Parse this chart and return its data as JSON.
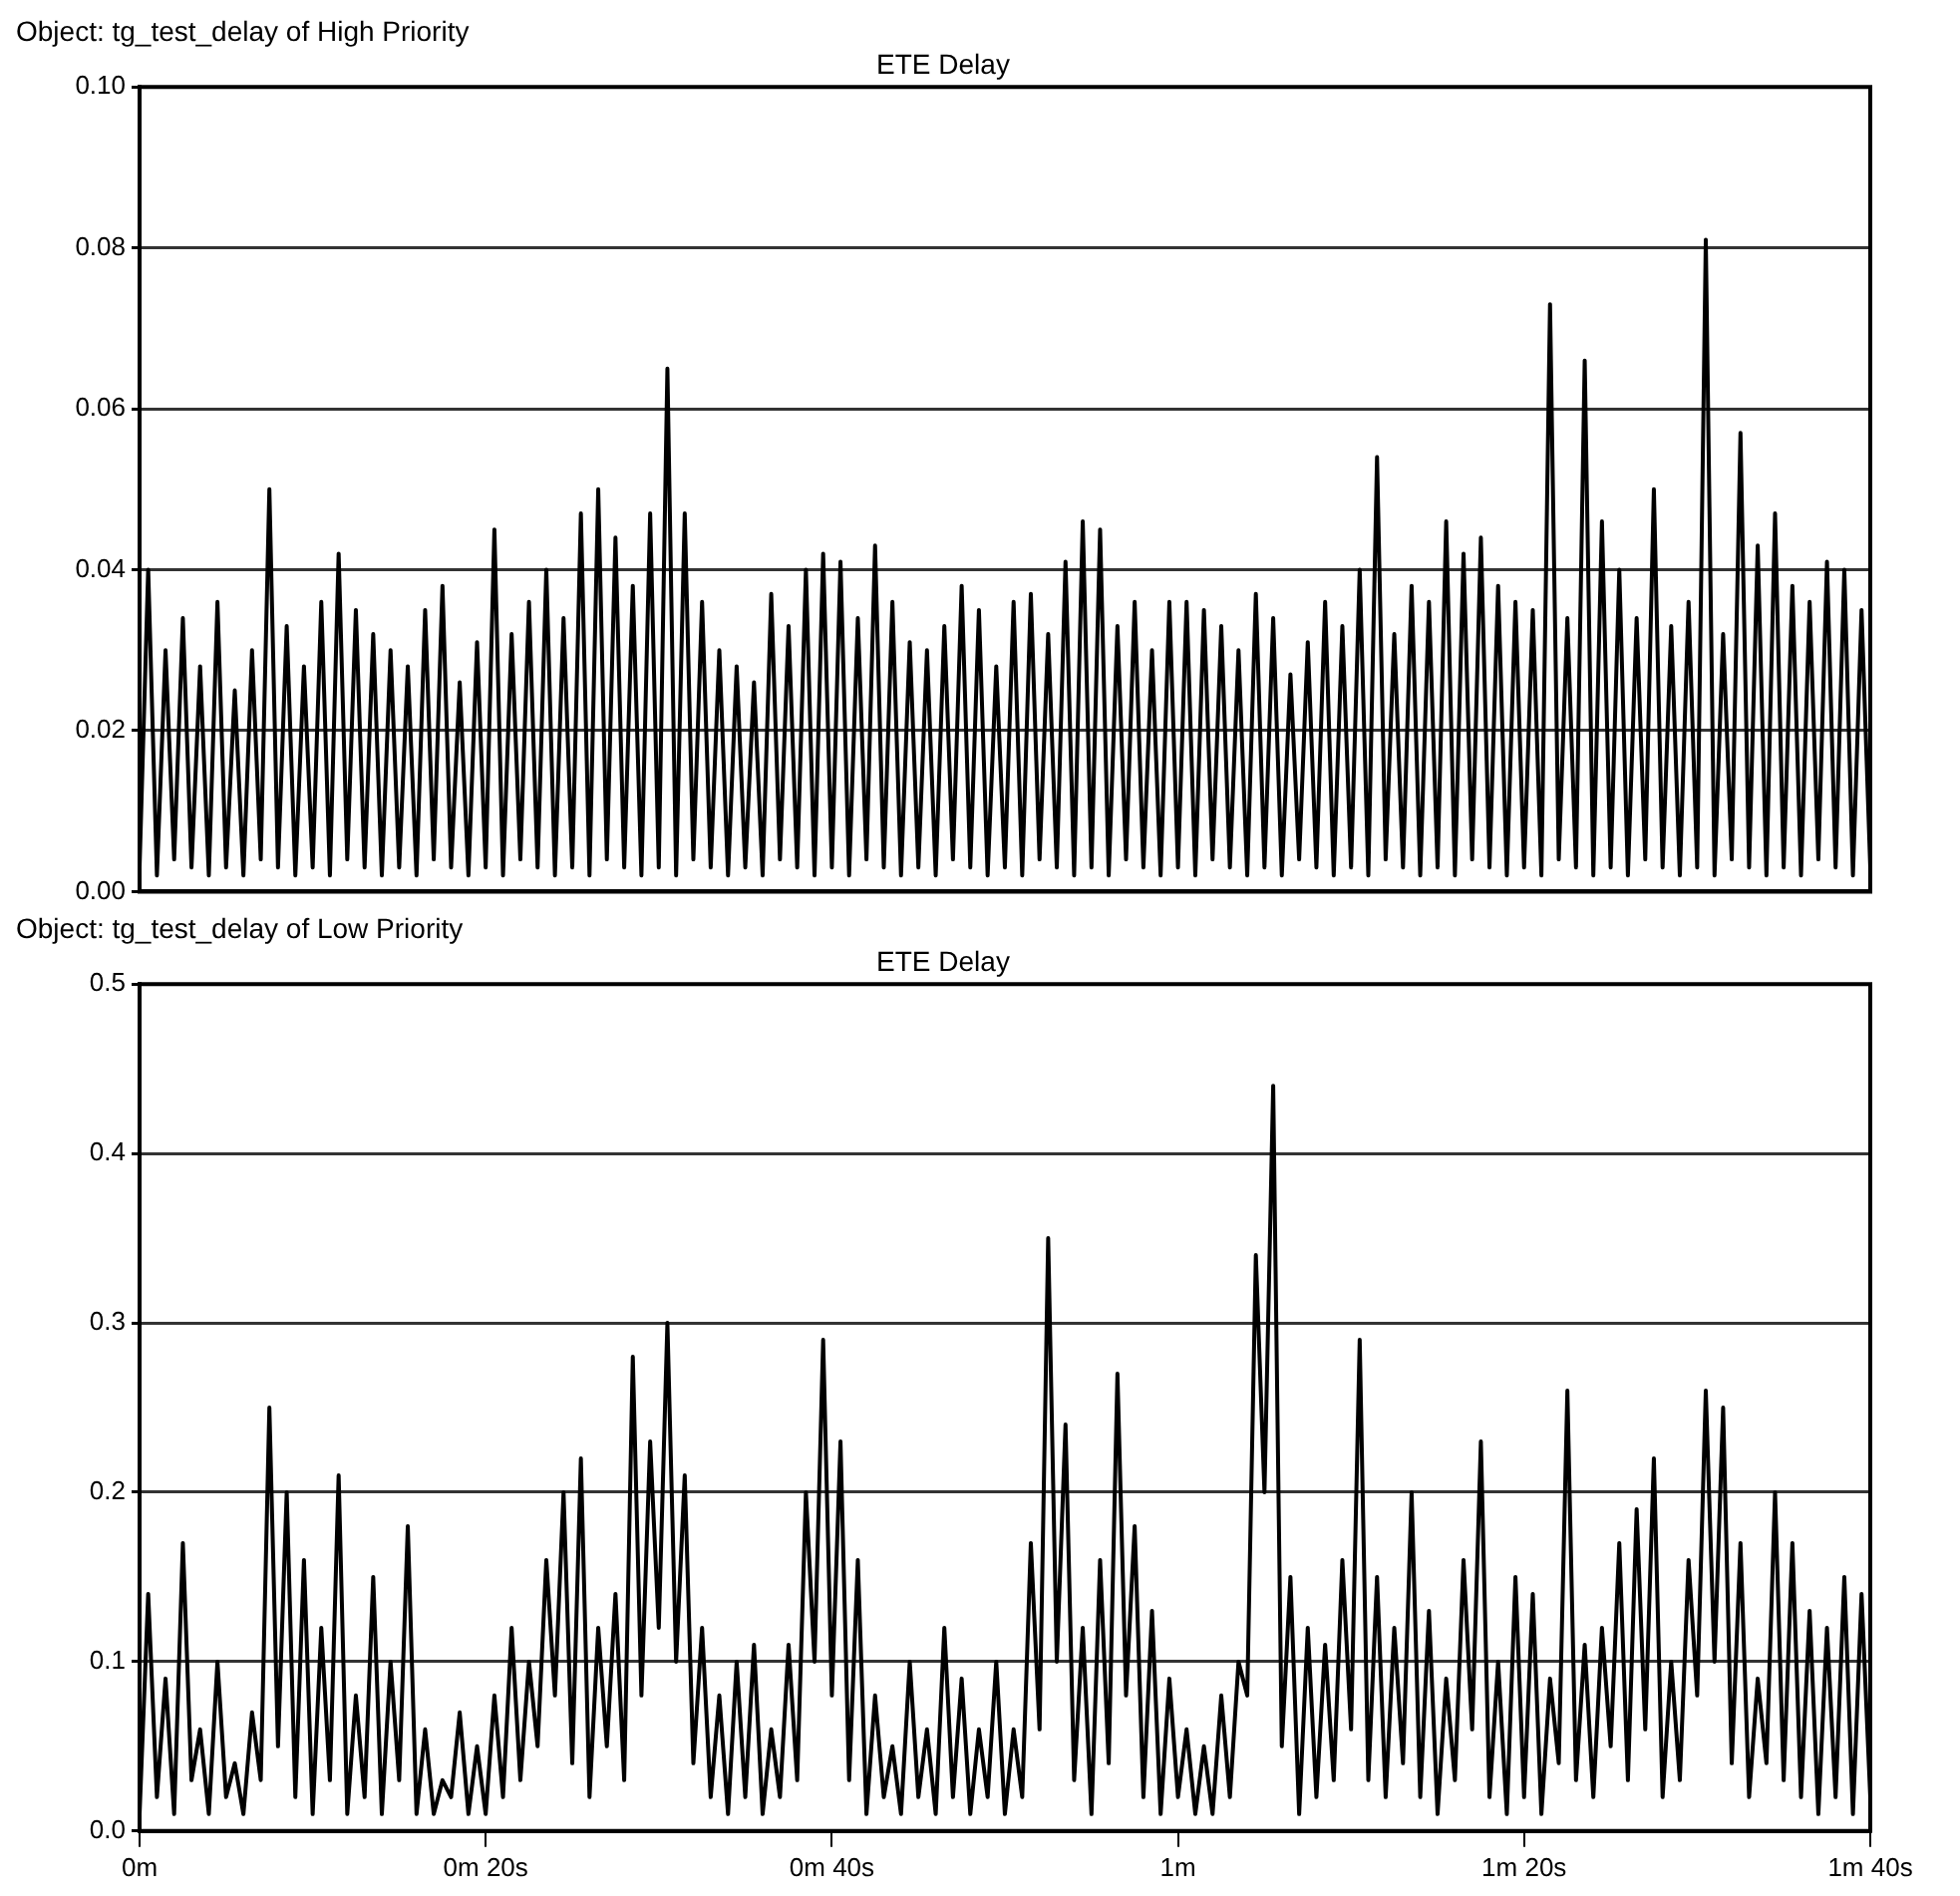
{
  "chart_data": [
    {
      "type": "line",
      "title": "Object: tg_test_delay of High Priority",
      "subtitle": "ETE Delay",
      "grid": "y",
      "marker": "none",
      "tick_labels": "y",
      "xlim": [
        0,
        1.6667
      ],
      "ylim": [
        0,
        0.1
      ],
      "yticks": [
        {
          "value": 0,
          "label": "0.00"
        },
        {
          "value": 0.02,
          "label": "0.02"
        },
        {
          "value": 0.04,
          "label": "0.04"
        },
        {
          "value": 0.06,
          "label": "0.06"
        },
        {
          "value": 0.08,
          "label": "0.08"
        },
        {
          "value": 0.1,
          "label": "0.10"
        }
      ],
      "x": [
        0,
        0.0083,
        0.0167,
        0.025,
        0.0333,
        0.0417,
        0.05,
        0.0583,
        0.0667,
        0.075,
        0.0833,
        0.0917,
        0.1,
        0.1083,
        0.1167,
        0.125,
        0.1333,
        0.1417,
        0.15,
        0.1583,
        0.1667,
        0.175,
        0.1833,
        0.1917,
        0.2,
        0.2083,
        0.2167,
        0.225,
        0.2333,
        0.2417,
        0.25,
        0.2583,
        0.2667,
        0.275,
        0.2833,
        0.2917,
        0.3,
        0.3083,
        0.3167,
        0.325,
        0.3333,
        0.3417,
        0.35,
        0.3583,
        0.3667,
        0.375,
        0.3833,
        0.3917,
        0.4,
        0.4083,
        0.4167,
        0.425,
        0.4333,
        0.4417,
        0.45,
        0.4583,
        0.4667,
        0.475,
        0.4833,
        0.4917,
        0.5,
        0.5083,
        0.5167,
        0.525,
        0.5333,
        0.5417,
        0.55,
        0.5583,
        0.5667,
        0.575,
        0.5833,
        0.5917,
        0.6,
        0.6083,
        0.6167,
        0.625,
        0.6333,
        0.6417,
        0.65,
        0.6583,
        0.6667,
        0.675,
        0.6833,
        0.6917,
        0.7,
        0.7083,
        0.7167,
        0.725,
        0.7333,
        0.7417,
        0.75,
        0.7583,
        0.7667,
        0.775,
        0.7833,
        0.7917,
        0.8,
        0.8083,
        0.8167,
        0.825,
        0.8333,
        0.8417,
        0.85,
        0.8583,
        0.8667,
        0.875,
        0.8833,
        0.8917,
        0.9,
        0.9083,
        0.9167,
        0.925,
        0.9333,
        0.9417,
        0.95,
        0.9583,
        0.9667,
        0.975,
        0.9833,
        0.9917,
        1,
        1.0083,
        1.0167,
        1.025,
        1.0333,
        1.0417,
        1.05,
        1.0583,
        1.0667,
        1.075,
        1.0833,
        1.0917,
        1.1,
        1.1083,
        1.1167,
        1.125,
        1.1333,
        1.1417,
        1.15,
        1.1583,
        1.1667,
        1.175,
        1.1833,
        1.1917,
        1.2,
        1.2083,
        1.2167,
        1.225,
        1.2333,
        1.2417,
        1.25,
        1.2583,
        1.2667,
        1.275,
        1.2833,
        1.2917,
        1.3,
        1.3083,
        1.3167,
        1.325,
        1.3333,
        1.3417,
        1.35,
        1.3583,
        1.3667,
        1.375,
        1.3833,
        1.3917,
        1.4,
        1.4083,
        1.4167,
        1.425,
        1.4333,
        1.4417,
        1.45,
        1.4583,
        1.4667,
        1.475,
        1.4833,
        1.4917,
        1.5,
        1.5083,
        1.5167,
        1.525,
        1.5333,
        1.5417,
        1.55,
        1.5583,
        1.5667,
        1.575,
        1.5833,
        1.5917,
        1.6,
        1.6083,
        1.6167,
        1.625,
        1.6333,
        1.6417,
        1.65,
        1.6583,
        1.6667
      ],
      "series": [
        {
          "color": "#000000",
          "values": [
            0.003,
            0.04,
            0.002,
            0.03,
            0.004,
            0.034,
            0.003,
            0.028,
            0.002,
            0.036,
            0.003,
            0.025,
            0.002,
            0.03,
            0.004,
            0.05,
            0.003,
            0.033,
            0.002,
            0.028,
            0.003,
            0.036,
            0.002,
            0.042,
            0.004,
            0.035,
            0.003,
            0.032,
            0.002,
            0.03,
            0.003,
            0.028,
            0.002,
            0.035,
            0.004,
            0.038,
            0.003,
            0.026,
            0.002,
            0.031,
            0.003,
            0.045,
            0.002,
            0.032,
            0.004,
            0.036,
            0.003,
            0.04,
            0.002,
            0.034,
            0.003,
            0.047,
            0.002,
            0.05,
            0.004,
            0.044,
            0.003,
            0.038,
            0.002,
            0.047,
            0.003,
            0.065,
            0.002,
            0.047,
            0.004,
            0.036,
            0.003,
            0.03,
            0.002,
            0.028,
            0.003,
            0.026,
            0.002,
            0.037,
            0.004,
            0.033,
            0.003,
            0.04,
            0.002,
            0.042,
            0.003,
            0.041,
            0.002,
            0.034,
            0.004,
            0.043,
            0.003,
            0.036,
            0.002,
            0.031,
            0.003,
            0.03,
            0.002,
            0.033,
            0.004,
            0.038,
            0.003,
            0.035,
            0.002,
            0.028,
            0.003,
            0.036,
            0.002,
            0.037,
            0.004,
            0.032,
            0.003,
            0.041,
            0.002,
            0.046,
            0.003,
            0.045,
            0.002,
            0.033,
            0.004,
            0.036,
            0.003,
            0.03,
            0.002,
            0.036,
            0.003,
            0.036,
            0.002,
            0.035,
            0.004,
            0.033,
            0.003,
            0.03,
            0.002,
            0.037,
            0.003,
            0.034,
            0.002,
            0.027,
            0.004,
            0.031,
            0.003,
            0.036,
            0.002,
            0.033,
            0.003,
            0.04,
            0.002,
            0.054,
            0.004,
            0.032,
            0.003,
            0.038,
            0.002,
            0.036,
            0.003,
            0.046,
            0.002,
            0.042,
            0.004,
            0.044,
            0.003,
            0.038,
            0.002,
            0.036,
            0.003,
            0.035,
            0.002,
            0.073,
            0.004,
            0.034,
            0.003,
            0.066,
            0.002,
            0.046,
            0.003,
            0.04,
            0.002,
            0.034,
            0.004,
            0.05,
            0.003,
            0.033,
            0.002,
            0.036,
            0.003,
            0.081,
            0.002,
            0.032,
            0.004,
            0.057,
            0.003,
            0.043,
            0.002,
            0.047,
            0.003,
            0.038,
            0.002,
            0.036,
            0.004,
            0.041,
            0.003,
            0.04,
            0.002,
            0.035,
            0.003
          ]
        }
      ]
    },
    {
      "type": "line",
      "title": "Object: tg_test_delay of Low Priority",
      "subtitle": "ETE Delay",
      "grid": "y",
      "marker": "none",
      "xlim": [
        0,
        1.6667
      ],
      "xticks": [
        {
          "value": 0,
          "label": "0m"
        },
        {
          "value": 0.3333,
          "label": "0m 20s"
        },
        {
          "value": 0.6667,
          "label": "0m 40s"
        },
        {
          "value": 1,
          "label": "1m"
        },
        {
          "value": 1.3333,
          "label": "1m 20s"
        },
        {
          "value": 1.6667,
          "label": "1m 40s"
        }
      ],
      "ylim": [
        0,
        0.5
      ],
      "yticks": [
        {
          "value": 0,
          "label": "0.0"
        },
        0.1,
        0.2,
        0.3,
        0.4,
        0.5
      ],
      "x": [
        0,
        0.0083,
        0.0167,
        0.025,
        0.0333,
        0.0417,
        0.05,
        0.0583,
        0.0667,
        0.075,
        0.0833,
        0.0917,
        0.1,
        0.1083,
        0.1167,
        0.125,
        0.1333,
        0.1417,
        0.15,
        0.1583,
        0.1667,
        0.175,
        0.1833,
        0.1917,
        0.2,
        0.2083,
        0.2167,
        0.225,
        0.2333,
        0.2417,
        0.25,
        0.2583,
        0.2667,
        0.275,
        0.2833,
        0.2917,
        0.3,
        0.3083,
        0.3167,
        0.325,
        0.3333,
        0.3417,
        0.35,
        0.3583,
        0.3667,
        0.375,
        0.3833,
        0.3917,
        0.4,
        0.4083,
        0.4167,
        0.425,
        0.4333,
        0.4417,
        0.45,
        0.4583,
        0.4667,
        0.475,
        0.4833,
        0.4917,
        0.5,
        0.5083,
        0.5167,
        0.525,
        0.5333,
        0.5417,
        0.55,
        0.5583,
        0.5667,
        0.575,
        0.5833,
        0.5917,
        0.6,
        0.6083,
        0.6167,
        0.625,
        0.6333,
        0.6417,
        0.65,
        0.6583,
        0.6667,
        0.675,
        0.6833,
        0.6917,
        0.7,
        0.7083,
        0.7167,
        0.725,
        0.7333,
        0.7417,
        0.75,
        0.7583,
        0.7667,
        0.775,
        0.7833,
        0.7917,
        0.8,
        0.8083,
        0.8167,
        0.825,
        0.8333,
        0.8417,
        0.85,
        0.8583,
        0.8667,
        0.875,
        0.8833,
        0.8917,
        0.9,
        0.9083,
        0.9167,
        0.925,
        0.9333,
        0.9417,
        0.95,
        0.9583,
        0.9667,
        0.975,
        0.9833,
        0.9917,
        1,
        1.0083,
        1.0167,
        1.025,
        1.0333,
        1.0417,
        1.05,
        1.0583,
        1.0667,
        1.075,
        1.0833,
        1.0917,
        1.1,
        1.1083,
        1.1167,
        1.125,
        1.1333,
        1.1417,
        1.15,
        1.1583,
        1.1667,
        1.175,
        1.1833,
        1.1917,
        1.2,
        1.2083,
        1.2167,
        1.225,
        1.2333,
        1.2417,
        1.25,
        1.2583,
        1.2667,
        1.275,
        1.2833,
        1.2917,
        1.3,
        1.3083,
        1.3167,
        1.325,
        1.3333,
        1.3417,
        1.35,
        1.3583,
        1.3667,
        1.375,
        1.3833,
        1.3917,
        1.4,
        1.4083,
        1.4167,
        1.425,
        1.4333,
        1.4417,
        1.45,
        1.4583,
        1.4667,
        1.475,
        1.4833,
        1.4917,
        1.5,
        1.5083,
        1.5167,
        1.525,
        1.5333,
        1.5417,
        1.55,
        1.5583,
        1.5667,
        1.575,
        1.5833,
        1.5917,
        1.6,
        1.6083,
        1.6167,
        1.625,
        1.6333,
        1.6417,
        1.65,
        1.6583,
        1.6667
      ],
      "series": [
        {
          "color": "#000000",
          "values": [
            0.01,
            0.14,
            0.02,
            0.09,
            0.01,
            0.17,
            0.03,
            0.06,
            0.01,
            0.1,
            0.02,
            0.04,
            0.01,
            0.07,
            0.03,
            0.25,
            0.05,
            0.2,
            0.02,
            0.16,
            0.01,
            0.12,
            0.03,
            0.21,
            0.01,
            0.08,
            0.02,
            0.15,
            0.01,
            0.1,
            0.03,
            0.18,
            0.01,
            0.06,
            0.01,
            0.03,
            0.02,
            0.07,
            0.01,
            0.05,
            0.01,
            0.08,
            0.02,
            0.12,
            0.03,
            0.1,
            0.05,
            0.16,
            0.08,
            0.2,
            0.04,
            0.22,
            0.02,
            0.12,
            0.05,
            0.14,
            0.03,
            0.28,
            0.08,
            0.23,
            0.12,
            0.3,
            0.1,
            0.21,
            0.04,
            0.12,
            0.02,
            0.08,
            0.01,
            0.1,
            0.02,
            0.11,
            0.01,
            0.06,
            0.02,
            0.11,
            0.03,
            0.2,
            0.1,
            0.29,
            0.08,
            0.23,
            0.03,
            0.16,
            0.01,
            0.08,
            0.02,
            0.05,
            0.01,
            0.1,
            0.02,
            0.06,
            0.01,
            0.12,
            0.02,
            0.09,
            0.01,
            0.06,
            0.02,
            0.1,
            0.01,
            0.06,
            0.02,
            0.17,
            0.06,
            0.35,
            0.1,
            0.24,
            0.03,
            0.12,
            0.01,
            0.16,
            0.04,
            0.27,
            0.08,
            0.18,
            0.02,
            0.13,
            0.01,
            0.09,
            0.02,
            0.06,
            0.01,
            0.05,
            0.01,
            0.08,
            0.02,
            0.1,
            0.08,
            0.34,
            0.2,
            0.44,
            0.05,
            0.15,
            0.01,
            0.12,
            0.02,
            0.11,
            0.03,
            0.16,
            0.06,
            0.29,
            0.03,
            0.15,
            0.02,
            0.12,
            0.04,
            0.2,
            0.02,
            0.13,
            0.01,
            0.09,
            0.03,
            0.16,
            0.06,
            0.23,
            0.02,
            0.1,
            0.01,
            0.15,
            0.02,
            0.14,
            0.01,
            0.09,
            0.04,
            0.26,
            0.03,
            0.11,
            0.02,
            0.12,
            0.05,
            0.17,
            0.03,
            0.19,
            0.06,
            0.22,
            0.02,
            0.1,
            0.03,
            0.16,
            0.08,
            0.26,
            0.1,
            0.25,
            0.04,
            0.17,
            0.02,
            0.09,
            0.04,
            0.2,
            0.03,
            0.17,
            0.02,
            0.13,
            0.01,
            0.12,
            0.02,
            0.15,
            0.01,
            0.14,
            0.02
          ]
        }
      ]
    }
  ]
}
